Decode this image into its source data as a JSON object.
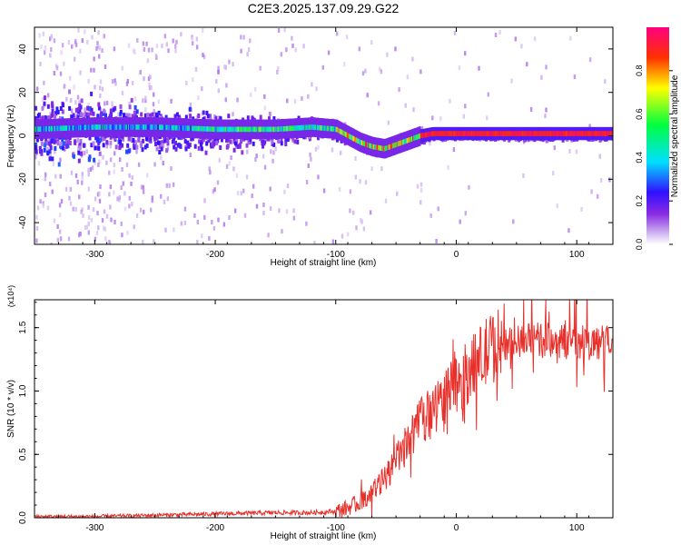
{
  "figure": {
    "title": "C2E3.2025.137.09.29.G22"
  },
  "chart_data": [
    {
      "type": "heatmap",
      "title": "C2E3.2025.137.09.29.G22",
      "xlabel": "Height of straight line (km)",
      "ylabel": "Frequency (Hz)",
      "xlim": [
        -350,
        130
      ],
      "ylim": [
        -50,
        50
      ],
      "xticks": [
        -300,
        -200,
        -100,
        0,
        100
      ],
      "yticks": [
        -40,
        -20,
        0,
        20,
        40
      ],
      "colorbar": {
        "label": "Normalized spectral amplitude",
        "range": [
          0,
          1
        ],
        "ticks": [
          0.0,
          0.2,
          0.4,
          0.6,
          0.8
        ],
        "tick_labels": [
          "0.0",
          "0.2",
          "0.4",
          "0.6",
          "0.8"
        ],
        "colormap": [
          "#ffffff",
          "#c8a8f0",
          "#8a2be2",
          "#3010ff",
          "#00e0ff",
          "#00ff40",
          "#ffff00",
          "#ff3000",
          "#ff0080"
        ]
      },
      "ridge": {
        "description_points_x": [
          -350,
          -300,
          -250,
          -200,
          -150,
          -120,
          -100,
          -90,
          -80,
          -70,
          -60,
          -50,
          -40,
          -30,
          -20,
          0,
          50,
          100,
          130
        ],
        "description_points_y": [
          3,
          4,
          4,
          3,
          3,
          4,
          3,
          0,
          -3,
          -5,
          -6,
          -4,
          -2,
          0,
          1,
          1,
          1,
          1,
          1
        ]
      }
    },
    {
      "type": "line",
      "xlabel": "Height of straight line (km)",
      "ylabel": "SNR (10 * v/v)",
      "yscale_note": "(x10⁴)",
      "xlim": [
        -350,
        130
      ],
      "ylim": [
        0,
        1.72
      ],
      "xticks": [
        -300,
        -200,
        -100,
        0,
        100
      ],
      "yticks": [
        0.0,
        0.5,
        1.0,
        1.5
      ],
      "ytick_labels": [
        "0.0",
        "0.5",
        "1.0",
        "1.5"
      ],
      "grid": false,
      "series": [
        {
          "color": "#e8302b",
          "x": [
            -350,
            -300,
            -250,
            -200,
            -150,
            -120,
            -100,
            -90,
            -80,
            -70,
            -60,
            -50,
            -40,
            -30,
            -20,
            -10,
            0,
            10,
            20,
            30,
            40,
            60,
            80,
            100,
            130
          ],
          "y": [
            0.01,
            0.01,
            0.02,
            0.03,
            0.04,
            0.04,
            0.05,
            0.08,
            0.12,
            0.2,
            0.3,
            0.45,
            0.6,
            0.75,
            0.85,
            0.95,
            1.05,
            1.15,
            1.25,
            1.35,
            1.38,
            1.4,
            1.4,
            1.38,
            1.38
          ]
        }
      ]
    }
  ]
}
